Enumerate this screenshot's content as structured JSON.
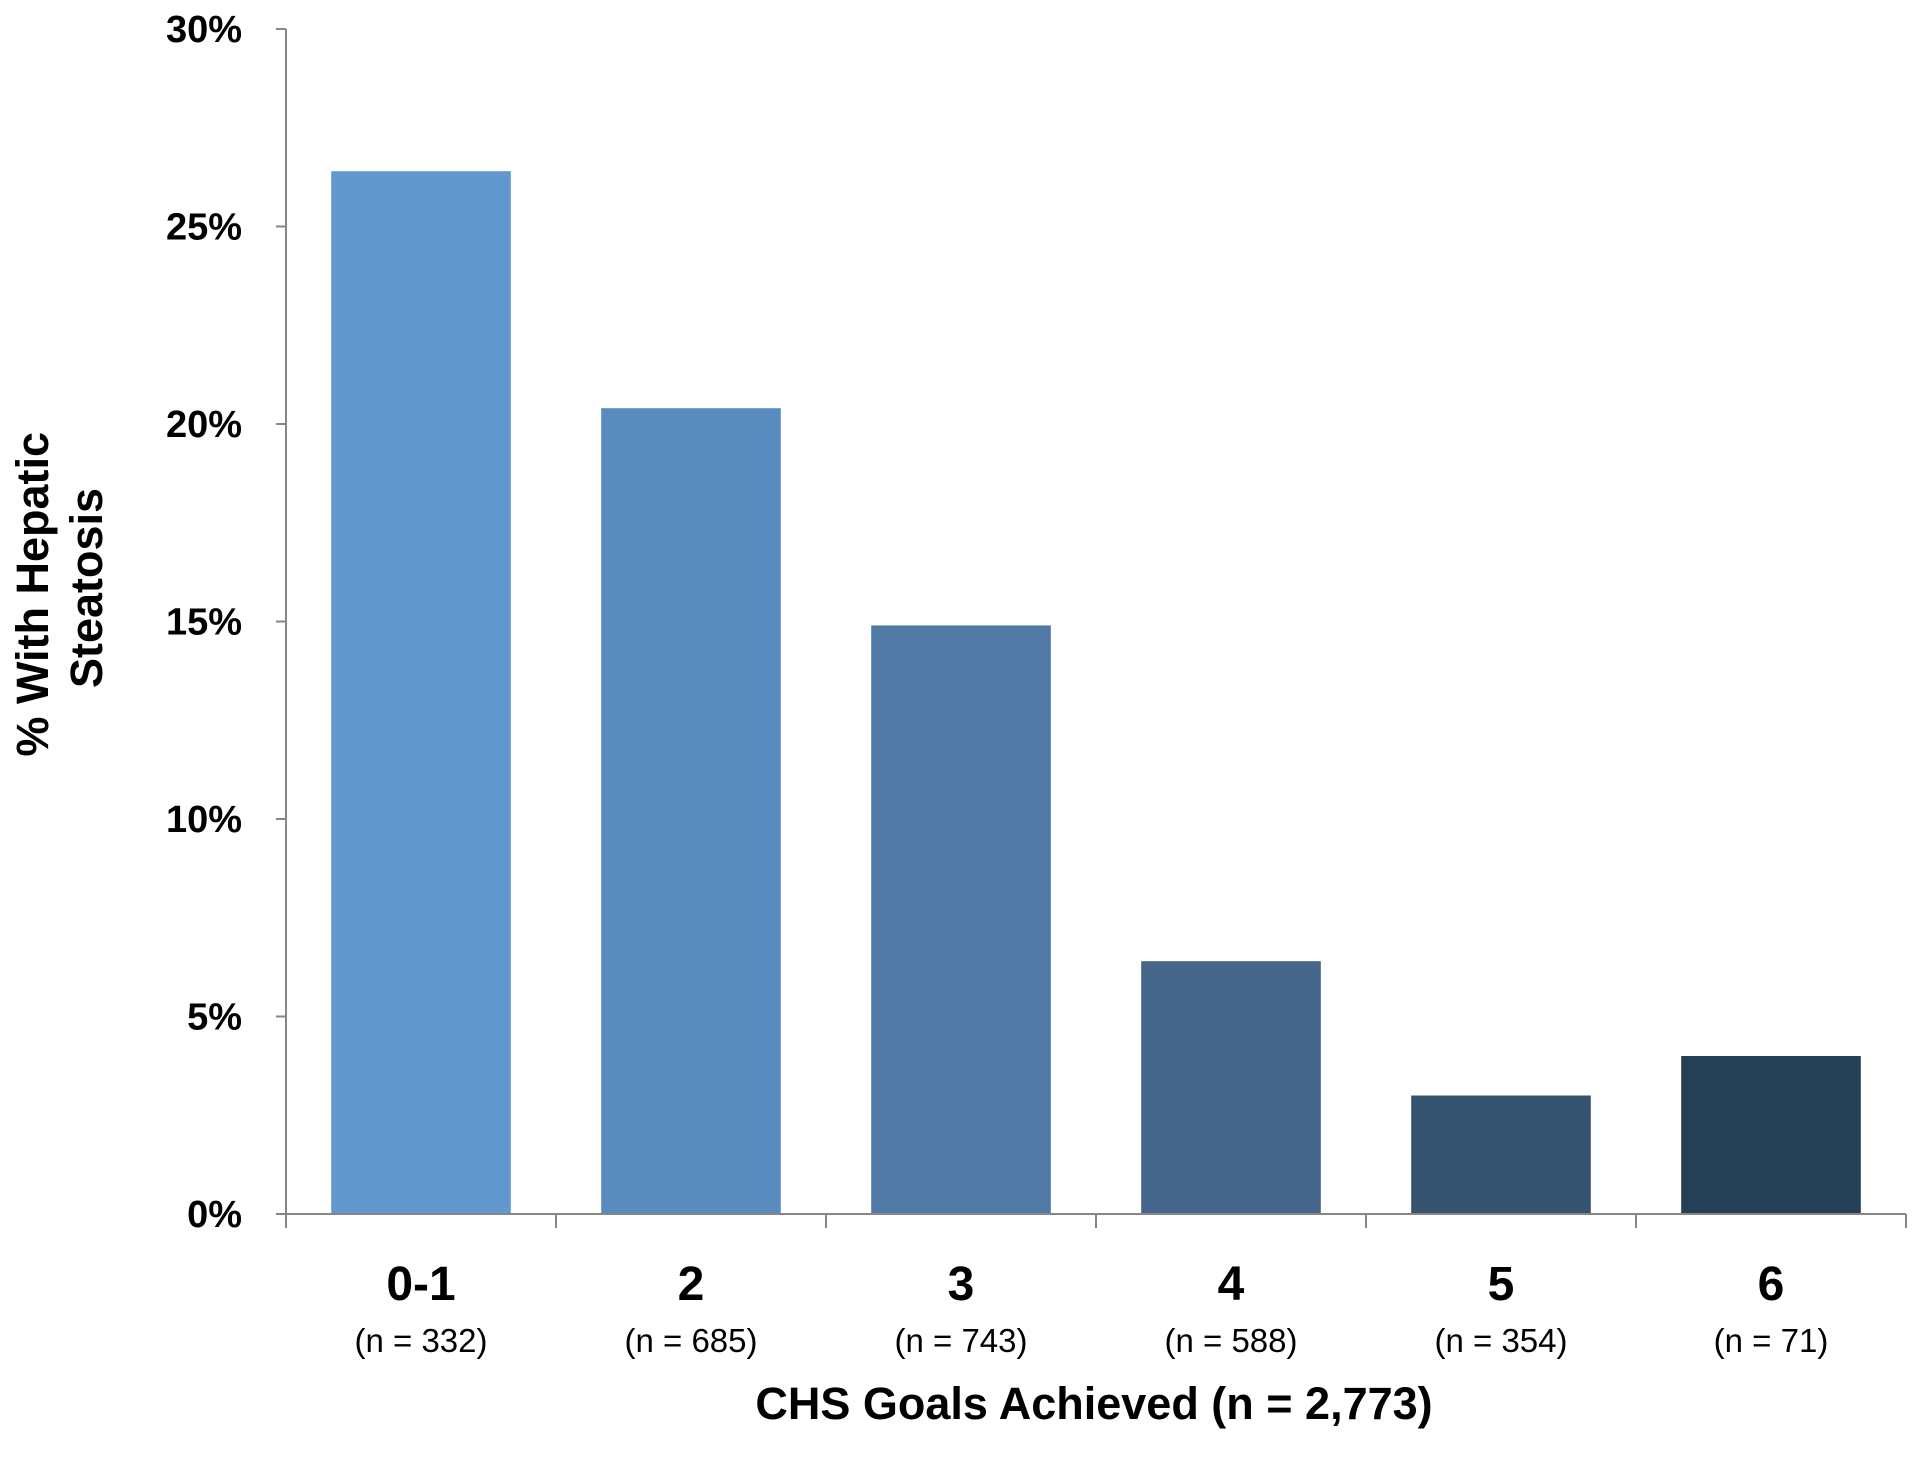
{
  "chart_data": {
    "type": "bar",
    "title": "",
    "xlabel": "CHS Goals Achieved (n = 2,773)",
    "ylabel_lines": [
      "% With Hepatic",
      "Steatosis"
    ],
    "categories": [
      "0-1",
      "2",
      "3",
      "4",
      "5",
      "6"
    ],
    "category_sublabels": [
      "(n = 332)",
      "(n = 685)",
      "(n = 743)",
      "(n = 588)",
      "(n = 354)",
      "(n = 71)"
    ],
    "values": [
      26.4,
      20.4,
      14.9,
      6.4,
      3.0,
      4.0
    ],
    "ylim": [
      0,
      30
    ],
    "yticks": [
      0,
      5,
      10,
      15,
      20,
      25,
      30
    ],
    "ytick_labels": [
      "0%",
      "5%",
      "10%",
      "15%",
      "20%",
      "25%",
      "30%"
    ],
    "bar_colors": [
      "#6199CF",
      "#5A8BBE",
      "#5079A6",
      "#44668A",
      "#36536F",
      "#253F57"
    ],
    "axis_color": "#868686",
    "grid": false,
    "legend": "none"
  }
}
